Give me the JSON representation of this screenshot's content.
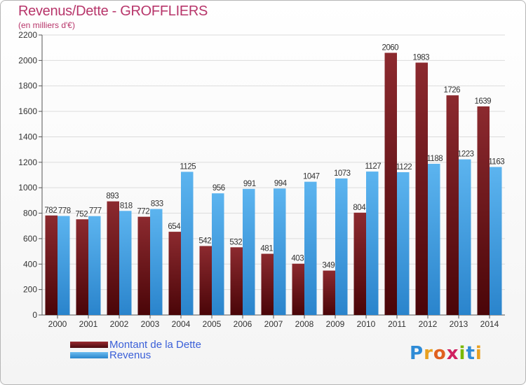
{
  "chart_data": {
    "type": "bar",
    "title": "Revenus/Dette - GROFFLIERS",
    "subtitle": "(en milliers d'€)",
    "categories": [
      "2000",
      "2001",
      "2002",
      "2003",
      "2004",
      "2005",
      "2006",
      "2007",
      "2008",
      "2009",
      "2010",
      "2011",
      "2012",
      "2013",
      "2014"
    ],
    "series": [
      {
        "name": "Montant de la Dette",
        "color": "#7a1e22",
        "values": [
          782,
          752,
          893,
          772,
          654,
          542,
          532,
          481,
          403,
          349,
          804,
          2060,
          1983,
          1726,
          1639
        ]
      },
      {
        "name": "Revenus",
        "color": "#3f9fe0",
        "values": [
          778,
          777,
          818,
          833,
          1125,
          956,
          991,
          994,
          1047,
          1073,
          1127,
          1122,
          1188,
          1223,
          1163
        ]
      }
    ],
    "yticks": [
      0,
      200,
      400,
      600,
      800,
      1000,
      1200,
      1400,
      1600,
      1800,
      2000,
      2200
    ],
    "ylim": [
      0,
      2200
    ],
    "grid": true,
    "legend_position": "bottom-left"
  },
  "brand": {
    "letters": [
      "P",
      "r",
      "o",
      "x",
      "i",
      "t",
      "i"
    ],
    "colors": [
      "#2e8bd6",
      "#e8a020",
      "#e06020",
      "#d02060",
      "#7ab800",
      "#2e8bd6",
      "#e8a020"
    ]
  }
}
